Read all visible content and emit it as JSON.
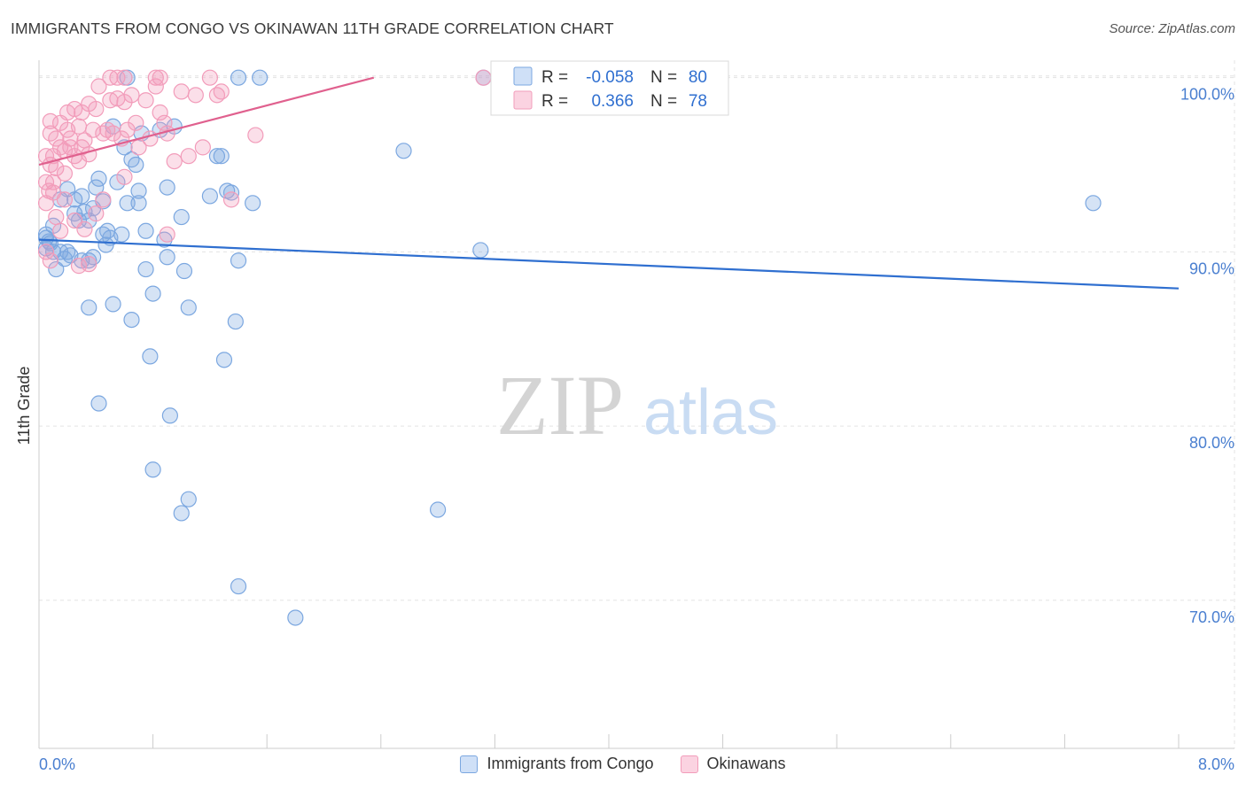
{
  "header": {
    "title": "IMMIGRANTS FROM CONGO VS OKINAWAN 11TH GRADE CORRELATION CHART",
    "source": "Source: ZipAtlas.com"
  },
  "watermark": {
    "zip": "ZIP",
    "atlas": "atlas"
  },
  "chart_data": {
    "type": "scatter",
    "title": "IMMIGRANTS FROM CONGO VS OKINAWAN 11TH GRADE CORRELATION CHART",
    "xlabel": "",
    "ylabel": "11th Grade",
    "xlim": [
      0,
      8
    ],
    "ylim": [
      61.5,
      101
    ],
    "x_tick_labels": [
      "0.0%",
      "8.0%"
    ],
    "y_ticks": [
      70,
      80,
      90,
      100
    ],
    "y_tick_labels": [
      "70.0%",
      "80.0%",
      "90.0%",
      "100.0%"
    ],
    "grid": true,
    "legend_inset": [
      {
        "r_label": "R =",
        "r": "-0.058",
        "n_label": "N =",
        "n": "80"
      },
      {
        "r_label": "R =",
        "r": "0.366",
        "n_label": "N =",
        "n": "78"
      }
    ],
    "series": [
      {
        "name": "Immigrants from Congo",
        "color": "#7ba7e0",
        "line_color": "#2f6fd0",
        "trend": {
          "x": [
            0,
            8
          ],
          "y": [
            90.7,
            87.9
          ]
        },
        "points": [
          [
            0.05,
            91.0
          ],
          [
            0.05,
            90.2
          ],
          [
            0.07,
            90.6
          ],
          [
            0.1,
            91.5
          ],
          [
            0.12,
            89.0
          ],
          [
            0.15,
            90.0
          ],
          [
            0.15,
            93.0
          ],
          [
            0.18,
            89.6
          ],
          [
            0.2,
            93.6
          ],
          [
            0.22,
            89.8
          ],
          [
            0.25,
            92.2
          ],
          [
            0.25,
            93.0
          ],
          [
            0.28,
            91.8
          ],
          [
            0.3,
            93.2
          ],
          [
            0.3,
            89.5
          ],
          [
            0.32,
            92.3
          ],
          [
            0.35,
            91.8
          ],
          [
            0.35,
            89.5
          ],
          [
            0.38,
            89.7
          ],
          [
            0.4,
            93.7
          ],
          [
            0.42,
            94.2
          ],
          [
            0.45,
            91.0
          ],
          [
            0.45,
            92.9
          ],
          [
            0.47,
            90.4
          ],
          [
            0.48,
            91.2
          ],
          [
            0.5,
            90.8
          ],
          [
            0.52,
            97.2
          ],
          [
            0.55,
            94.0
          ],
          [
            0.58,
            91.0
          ],
          [
            0.6,
            96.0
          ],
          [
            0.62,
            92.8
          ],
          [
            0.65,
            95.3
          ],
          [
            0.68,
            95.0
          ],
          [
            0.7,
            93.5
          ],
          [
            0.7,
            92.8
          ],
          [
            0.72,
            96.8
          ],
          [
            0.75,
            89.0
          ],
          [
            0.75,
            91.2
          ],
          [
            0.8,
            87.6
          ],
          [
            0.85,
            97.0
          ],
          [
            0.88,
            90.7
          ],
          [
            0.9,
            89.7
          ],
          [
            0.9,
            93.7
          ],
          [
            0.95,
            97.2
          ],
          [
            1.0,
            92.0
          ],
          [
            1.02,
            88.9
          ],
          [
            1.05,
            86.8
          ],
          [
            1.2,
            93.2
          ],
          [
            1.25,
            95.5
          ],
          [
            1.28,
            95.5
          ],
          [
            1.32,
            93.5
          ],
          [
            1.35,
            93.4
          ],
          [
            1.38,
            86.0
          ],
          [
            1.4,
            89.5
          ],
          [
            1.5,
            92.8
          ],
          [
            0.35,
            86.8
          ],
          [
            0.52,
            87.0
          ],
          [
            0.65,
            86.1
          ],
          [
            0.78,
            84.0
          ],
          [
            1.3,
            83.8
          ],
          [
            0.42,
            81.3
          ],
          [
            0.92,
            80.6
          ],
          [
            0.8,
            77.5
          ],
          [
            1.05,
            75.8
          ],
          [
            1.0,
            75.0
          ],
          [
            1.4,
            70.8
          ],
          [
            1.8,
            69.0
          ],
          [
            2.8,
            75.2
          ],
          [
            2.56,
            95.8
          ],
          [
            3.1,
            90.1
          ],
          [
            7.4,
            92.8
          ],
          [
            3.12,
            100.0
          ],
          [
            0.62,
            100.0
          ],
          [
            1.4,
            100.0
          ],
          [
            1.55,
            100.0
          ],
          [
            0.08,
            90.5
          ],
          [
            0.1,
            90.0
          ],
          [
            0.2,
            90.0
          ],
          [
            0.05,
            90.8
          ],
          [
            0.38,
            92.5
          ]
        ]
      },
      {
        "name": "Okinawans",
        "color": "#f29cba",
        "line_color": "#e0608e",
        "trend": {
          "x": [
            0,
            2.35
          ],
          "y": [
            95.0,
            100.0
          ]
        },
        "points": [
          [
            0.05,
            90.0
          ],
          [
            0.05,
            92.8
          ],
          [
            0.05,
            95.5
          ],
          [
            0.07,
            93.5
          ],
          [
            0.08,
            95.0
          ],
          [
            0.08,
            96.8
          ],
          [
            0.1,
            94.0
          ],
          [
            0.1,
            95.5
          ],
          [
            0.12,
            94.8
          ],
          [
            0.12,
            96.5
          ],
          [
            0.15,
            96.0
          ],
          [
            0.15,
            97.4
          ],
          [
            0.18,
            95.8
          ],
          [
            0.18,
            94.5
          ],
          [
            0.2,
            97.0
          ],
          [
            0.2,
            98.0
          ],
          [
            0.22,
            96.5
          ],
          [
            0.25,
            95.5
          ],
          [
            0.25,
            98.2
          ],
          [
            0.28,
            97.2
          ],
          [
            0.28,
            95.2
          ],
          [
            0.3,
            98.0
          ],
          [
            0.3,
            96.0
          ],
          [
            0.32,
            96.4
          ],
          [
            0.35,
            98.5
          ],
          [
            0.35,
            95.6
          ],
          [
            0.38,
            97.0
          ],
          [
            0.4,
            98.2
          ],
          [
            0.42,
            99.5
          ],
          [
            0.45,
            96.8
          ],
          [
            0.48,
            97.0
          ],
          [
            0.5,
            98.7
          ],
          [
            0.52,
            96.8
          ],
          [
            0.55,
            98.8
          ],
          [
            0.58,
            96.5
          ],
          [
            0.6,
            98.6
          ],
          [
            0.62,
            97.0
          ],
          [
            0.65,
            99.0
          ],
          [
            0.68,
            97.4
          ],
          [
            0.7,
            96.0
          ],
          [
            0.75,
            98.7
          ],
          [
            0.78,
            96.5
          ],
          [
            0.82,
            99.5
          ],
          [
            0.85,
            98.0
          ],
          [
            0.88,
            97.4
          ],
          [
            0.9,
            96.8
          ],
          [
            0.95,
            95.2
          ],
          [
            1.0,
            99.2
          ],
          [
            1.05,
            95.5
          ],
          [
            1.1,
            99.0
          ],
          [
            1.15,
            96.0
          ],
          [
            1.2,
            100.0
          ],
          [
            1.25,
            99.0
          ],
          [
            1.28,
            99.2
          ],
          [
            1.35,
            93.0
          ],
          [
            1.52,
            96.7
          ],
          [
            0.15,
            91.2
          ],
          [
            0.25,
            91.8
          ],
          [
            0.28,
            89.2
          ],
          [
            0.32,
            91.3
          ],
          [
            0.35,
            89.3
          ],
          [
            0.4,
            92.2
          ],
          [
            0.45,
            93.0
          ],
          [
            0.55,
            100.0
          ],
          [
            0.6,
            100.0
          ],
          [
            0.82,
            100.0
          ],
          [
            0.85,
            100.0
          ],
          [
            0.5,
            100.0
          ],
          [
            0.6,
            94.3
          ],
          [
            0.9,
            91.0
          ],
          [
            0.08,
            89.5
          ],
          [
            0.12,
            92.0
          ],
          [
            0.18,
            93.0
          ],
          [
            0.22,
            96.0
          ],
          [
            0.05,
            94.0
          ],
          [
            0.1,
            93.4
          ],
          [
            0.08,
            97.5
          ],
          [
            3.12,
            100.0
          ]
        ]
      }
    ]
  }
}
